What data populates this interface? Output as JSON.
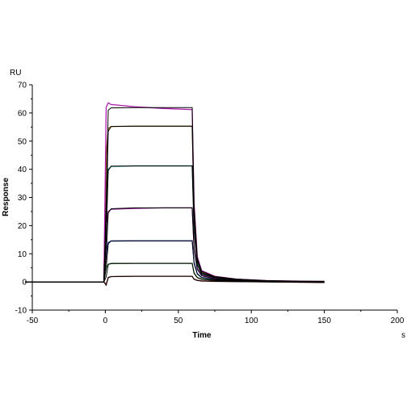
{
  "chart_data": {
    "type": "line",
    "title": "",
    "xlabel": "Time",
    "x_unit": "s",
    "ylabel": "Response",
    "y_unit": "RU",
    "xlim": [
      -50,
      200
    ],
    "ylim": [
      -10,
      70
    ],
    "x_ticks": [
      -50,
      0,
      50,
      100,
      150,
      200
    ],
    "y_ticks": [
      -10,
      0,
      10,
      20,
      30,
      40,
      50,
      60,
      70
    ],
    "grid": false,
    "legend": "none",
    "series": [
      {
        "color": "#8B1A1A",
        "fit_color": "#000000",
        "x": [
          -55,
          -1,
          0.6,
          2,
          4,
          20,
          40,
          59.5,
          60.8,
          63,
          66,
          75,
          90,
          110,
          130,
          150
        ],
        "y": [
          0,
          0,
          -0.8,
          1.6,
          1.9,
          2.0,
          2.0,
          2.0,
          1.0,
          0.6,
          0.4,
          0.2,
          0.1,
          0.0,
          -0.1,
          -0.2
        ],
        "fit_y": [
          0,
          0,
          -1.2,
          1.5,
          1.9,
          2.0,
          2.0,
          2.0,
          0.9,
          0.5,
          0.3,
          0.2,
          0.1,
          0.0,
          -0.1,
          -0.2
        ]
      },
      {
        "color": "#1E7A1E",
        "fit_color": "#000000",
        "x": [
          -55,
          -1,
          0.6,
          2,
          4,
          20,
          40,
          59.5,
          60.8,
          63,
          66,
          75,
          90,
          110,
          130,
          150
        ],
        "y": [
          0,
          0,
          5.0,
          6.3,
          6.5,
          6.6,
          6.6,
          6.6,
          3.2,
          1.6,
          1.0,
          0.6,
          0.3,
          0.1,
          0.0,
          -0.1
        ],
        "fit_y": [
          0,
          0,
          1.8,
          6.2,
          6.6,
          6.6,
          6.6,
          6.6,
          3.0,
          1.5,
          0.9,
          0.5,
          0.3,
          0.1,
          0.0,
          -0.1
        ]
      },
      {
        "color": "#1F3FBF",
        "fit_color": "#000000",
        "x": [
          -55,
          -1,
          0.6,
          2,
          4,
          20,
          40,
          59.5,
          60.8,
          63,
          66,
          75,
          90,
          110,
          130,
          150
        ],
        "y": [
          0,
          0,
          10.0,
          14.0,
          14.5,
          14.6,
          14.6,
          14.6,
          7.0,
          3.0,
          1.6,
          0.9,
          0.5,
          0.2,
          0.1,
          0.0
        ],
        "fit_y": [
          0,
          0,
          5.0,
          13.5,
          14.6,
          14.6,
          14.6,
          14.6,
          6.5,
          2.8,
          1.5,
          0.8,
          0.4,
          0.2,
          0.1,
          0.0
        ]
      },
      {
        "color": "#8B1A8B",
        "fit_color": "#000000",
        "x": [
          -55,
          -1,
          0.6,
          2,
          4,
          20,
          40,
          59.5,
          60.8,
          63,
          66,
          75,
          90,
          110,
          130,
          150
        ],
        "y": [
          0,
          0,
          20.0,
          25.0,
          25.8,
          26.1,
          26.3,
          26.3,
          12.0,
          4.8,
          2.4,
          1.2,
          0.6,
          0.3,
          0.1,
          0.0
        ],
        "fit_y": [
          0,
          0,
          9.0,
          24.5,
          26.0,
          26.3,
          26.3,
          26.3,
          11.5,
          4.5,
          2.2,
          1.1,
          0.6,
          0.3,
          0.1,
          0.0
        ]
      },
      {
        "color": "#1A8A7A",
        "fit_color": "#000000",
        "x": [
          -55,
          -1,
          0.6,
          2,
          4,
          20,
          40,
          59.5,
          60.8,
          63,
          66,
          75,
          90,
          110,
          130,
          150
        ],
        "y": [
          0,
          0,
          33.0,
          40.0,
          41.0,
          41.2,
          41.2,
          41.2,
          19.0,
          6.5,
          3.0,
          1.6,
          0.8,
          0.4,
          0.2,
          0.1
        ],
        "fit_y": [
          0,
          0,
          15.0,
          39.5,
          41.1,
          41.2,
          41.2,
          41.2,
          18.0,
          6.0,
          2.8,
          1.5,
          0.8,
          0.4,
          0.2,
          0.1
        ]
      },
      {
        "color": "#8B5A00",
        "fit_color": "#000000",
        "x": [
          -55,
          -1,
          0.6,
          2,
          4,
          20,
          40,
          59.5,
          60.8,
          63,
          66,
          75,
          90,
          110,
          130,
          150
        ],
        "y": [
          0,
          0,
          45.0,
          54.5,
          55.2,
          55.3,
          55.3,
          55.3,
          25.0,
          8.0,
          3.5,
          1.8,
          0.9,
          0.4,
          0.2,
          0.1
        ],
        "fit_y": [
          0,
          0,
          22.0,
          53.5,
          55.2,
          55.3,
          55.3,
          55.3,
          24.0,
          7.5,
          3.3,
          1.7,
          0.9,
          0.4,
          0.2,
          0.1
        ]
      },
      {
        "color": "#B01EB0",
        "fit_color": "#000000",
        "x": [
          -55,
          -1,
          0.6,
          2,
          4,
          20,
          40,
          59.5,
          60.8,
          63,
          66,
          75,
          90,
          110,
          130,
          150
        ],
        "y": [
          0,
          0,
          62.0,
          63.6,
          63.0,
          62.2,
          61.6,
          61.2,
          28.0,
          9.0,
          4.0,
          2.0,
          1.0,
          0.5,
          0.3,
          0.2
        ],
        "fit_y": [
          0,
          0,
          28.0,
          61.0,
          61.8,
          61.9,
          61.9,
          61.9,
          27.0,
          8.5,
          3.8,
          1.9,
          1.0,
          0.5,
          0.3,
          0.2
        ]
      }
    ]
  }
}
